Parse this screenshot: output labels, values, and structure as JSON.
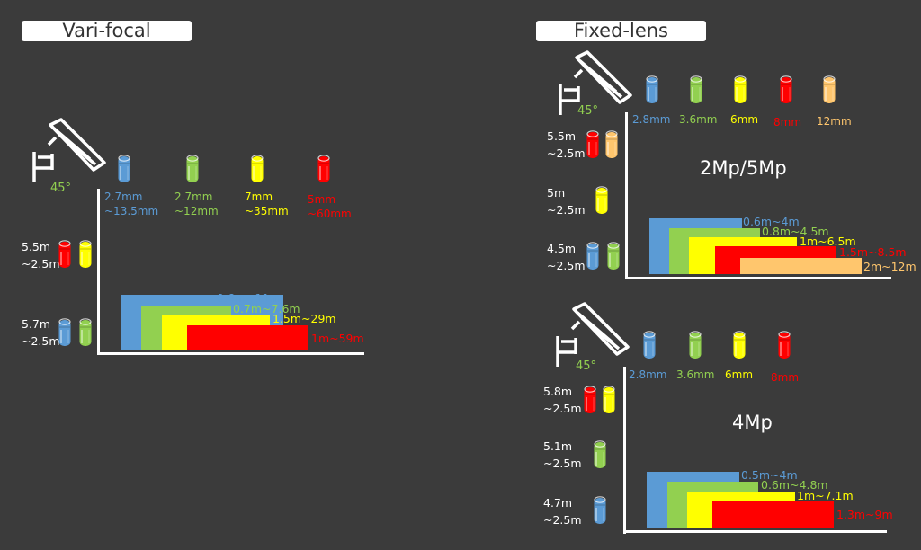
{
  "colors": {
    "blue": "#5b9bd5",
    "green": "#92d050",
    "yellow": "#ffff00",
    "red": "#ff0000",
    "orange": "#ffc66d",
    "background": "#3b3b3b"
  },
  "varifocal": {
    "title": "Vari-focal",
    "angle": "45°",
    "lenses": [
      {
        "color": "blue",
        "focal": "2.7mm",
        "range": "~13.5mm"
      },
      {
        "color": "green",
        "focal": "2.7mm",
        "range": "~12mm"
      },
      {
        "color": "yellow",
        "focal": "7mm",
        "range": "~35mm"
      },
      {
        "color": "red",
        "focal": "5mm",
        "range": "~60mm"
      }
    ],
    "distances": [
      {
        "top": "5.5m",
        "bottom": "~2.5m",
        "lens_colors": [
          "red",
          "yellow"
        ]
      },
      {
        "top": "5.7m",
        "bottom": "~2.5m",
        "lens_colors": [
          "blue",
          "green"
        ]
      }
    ],
    "ranges": [
      {
        "color": "blue",
        "label": "0.6m~11m"
      },
      {
        "color": "green",
        "label": "0.7m~7.6m"
      },
      {
        "color": "yellow",
        "label": "1.5m~29m"
      },
      {
        "color": "red",
        "label": "1m~59m"
      }
    ]
  },
  "fixed_2mp": {
    "title": "Fixed-lens",
    "resolution": "2Mp/5Mp",
    "angle": "45°",
    "lenses": [
      {
        "color": "blue",
        "focal": "2.8mm"
      },
      {
        "color": "green",
        "focal": "3.6mm"
      },
      {
        "color": "yellow",
        "focal": "6mm"
      },
      {
        "color": "red",
        "focal": "8mm"
      },
      {
        "color": "orange",
        "focal": "12mm"
      }
    ],
    "distances": [
      {
        "top": "5.5m",
        "bottom": "~2.5m",
        "lens_colors": [
          "red",
          "orange"
        ]
      },
      {
        "top": "5m",
        "bottom": "~2.5m",
        "lens_colors": [
          "yellow"
        ]
      },
      {
        "top": "4.5m",
        "bottom": "~2.5m",
        "lens_colors": [
          "blue",
          "green"
        ]
      }
    ],
    "ranges": [
      {
        "color": "blue",
        "label": "0.6m~4m"
      },
      {
        "color": "green",
        "label": "0.8m~4.5m"
      },
      {
        "color": "yellow",
        "label": "1m~6.5m"
      },
      {
        "color": "red",
        "label": "1.5m~8.5m"
      },
      {
        "color": "orange",
        "label": "2m~12m"
      }
    ]
  },
  "fixed_4mp": {
    "resolution": "4Mp",
    "angle": "45°",
    "lenses": [
      {
        "color": "blue",
        "focal": "2.8mm"
      },
      {
        "color": "green",
        "focal": "3.6mm"
      },
      {
        "color": "yellow",
        "focal": "6mm"
      },
      {
        "color": "red",
        "focal": "8mm"
      }
    ],
    "distances": [
      {
        "top": "5.8m",
        "bottom": "~2.5m",
        "lens_colors": [
          "red",
          "yellow"
        ]
      },
      {
        "top": "5.1m",
        "bottom": "~2.5m",
        "lens_colors": [
          "green"
        ]
      },
      {
        "top": "4.7m",
        "bottom": "~2.5m",
        "lens_colors": [
          "blue"
        ]
      }
    ],
    "ranges": [
      {
        "color": "blue",
        "label": "0.5m~4m"
      },
      {
        "color": "green",
        "label": "0.6m~4.8m"
      },
      {
        "color": "yellow",
        "label": "1m~7.1m"
      },
      {
        "color": "red",
        "label": "1.3m~9m"
      }
    ]
  }
}
